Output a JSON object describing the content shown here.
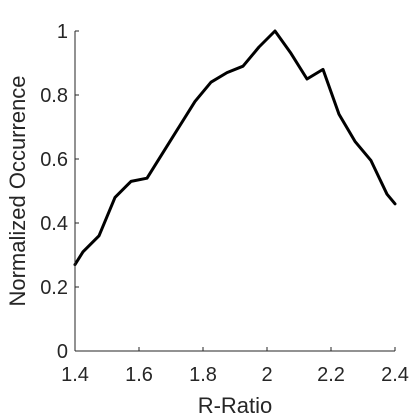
{
  "chart_data": {
    "type": "line",
    "title": "",
    "xlabel": "R-Ratio",
    "ylabel": "Normalized Occurrence",
    "xlim": [
      1.4,
      2.4
    ],
    "ylim": [
      0,
      1
    ],
    "xticks": [
      1.4,
      1.6,
      1.8,
      2.0,
      2.2,
      2.4
    ],
    "xtick_labels": [
      "1.4",
      "1.6",
      "1.8",
      "2",
      "2.2",
      "2.4"
    ],
    "yticks": [
      0,
      0.2,
      0.4,
      0.6,
      0.8,
      1
    ],
    "ytick_labels": [
      "0",
      "0.2",
      "0.4",
      "0.6",
      "0.8",
      "1"
    ],
    "grid": false,
    "line_color": "#000000",
    "series": [
      {
        "x": [
          1.4,
          1.425,
          1.475,
          1.525,
          1.575,
          1.625,
          1.675,
          1.725,
          1.775,
          1.825,
          1.875,
          1.925,
          1.975,
          2.025,
          2.075,
          2.125,
          2.175,
          2.225,
          2.275,
          2.325,
          2.375,
          2.4
        ],
        "y": [
          0.27,
          0.31,
          0.36,
          0.48,
          0.53,
          0.54,
          0.62,
          0.7,
          0.78,
          0.84,
          0.87,
          0.89,
          0.95,
          1.0,
          0.93,
          0.85,
          0.88,
          0.74,
          0.655,
          0.595,
          0.49,
          0.46
        ]
      }
    ]
  }
}
